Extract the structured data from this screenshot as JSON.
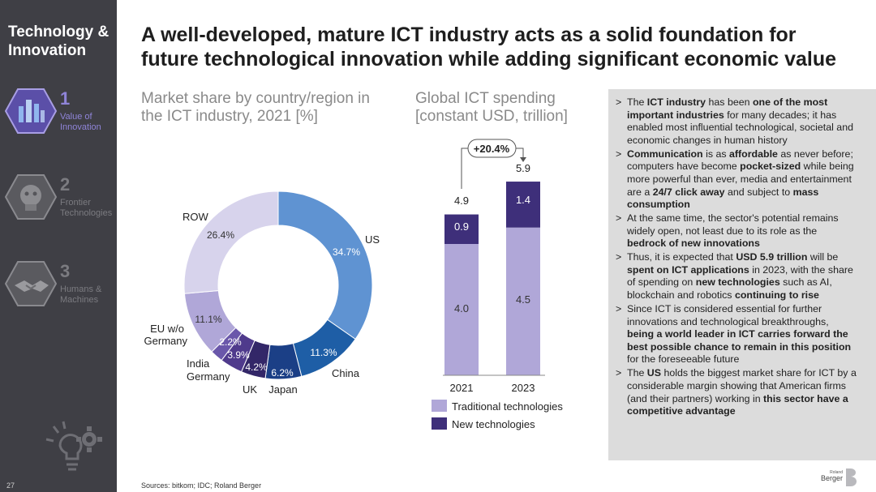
{
  "sidebar": {
    "title": "Technology & Innovation",
    "items": [
      {
        "number": "1",
        "label_line1": "Value of",
        "label_line2": "Innovation"
      },
      {
        "number": "2",
        "label_line1": "Frontier",
        "label_line2": "Technologies"
      },
      {
        "number": "3",
        "label_line1": "Humans &",
        "label_line2": "Machines"
      }
    ],
    "page_number": "27"
  },
  "headline": "A well-developed, mature ICT industry acts as a solid foundation for future technological innovation while adding significant economic value",
  "chart_titles": {
    "donut_line1": "Market share by country/region in",
    "donut_line2": "the ICT industry, 2021 [%]",
    "bars_line1": "Global ICT spending",
    "bars_line2": "[constant USD, trillion]"
  },
  "colors": {
    "us": "#5f93d2",
    "china": "#1e5ea6",
    "japan": "#1b3f86",
    "uk": "#332768",
    "germany": "#4f3a8c",
    "india": "#6a57aa",
    "eu": "#b0a7d8",
    "row": "#d7d3ec",
    "traditional": "#b0a7d8",
    "new": "#3e2f7a",
    "sidebar_bg": "#3f3f45",
    "panel_bg": "#dcdcdc"
  },
  "chart_data": [
    {
      "type": "pie",
      "categories": [
        "US",
        "China",
        "Japan",
        "UK",
        "Germany",
        "India",
        "EU w/o Germany",
        "ROW"
      ],
      "values": [
        34.7,
        11.3,
        6.2,
        4.2,
        3.9,
        2.2,
        11.1,
        26.4
      ],
      "value_labels": [
        "34.7%",
        "11.3%",
        "6.2%",
        "4.2%",
        "3.9%",
        "2.2%",
        "11.1%",
        "26.4%"
      ],
      "title": "Market share by country/region in the ICT industry, 2021 [%]"
    },
    {
      "type": "bar",
      "categories": [
        "2021",
        "2023"
      ],
      "series": [
        {
          "name": "Traditional technologies",
          "values": [
            4.0,
            4.5
          ],
          "labels": [
            "4.0",
            "4.5"
          ]
        },
        {
          "name": "New technologies",
          "values": [
            0.9,
            1.4
          ],
          "labels": [
            "0.9",
            "1.4"
          ]
        }
      ],
      "totals": [
        "4.9",
        "5.9"
      ],
      "growth_label": "+20.4%",
      "title": "Global ICT spending [constant USD, trillion]"
    }
  ],
  "panel": {
    "bullets": [
      [
        {
          "t": "The "
        },
        {
          "t": "ICT industry",
          "b": true
        },
        {
          "t": " has been "
        },
        {
          "t": "one of the most important industries",
          "b": true
        },
        {
          "t": " for many decades; it has enabled most influential technological, societal and economic changes in human history"
        }
      ],
      [
        {
          "t": "Communication",
          "b": true
        },
        {
          "t": " is as "
        },
        {
          "t": "affordable",
          "b": true
        },
        {
          "t": " as never before; computers have become "
        },
        {
          "t": "pocket-sized",
          "b": true
        },
        {
          "t": " while being more powerful than ever, media and entertainment are a "
        },
        {
          "t": "24/7 click away",
          "b": true
        },
        {
          "t": " and subject to "
        },
        {
          "t": "mass consumption",
          "b": true
        }
      ],
      [
        {
          "t": "At the same time, the sector's potential remains widely open, not least due to its role as the "
        },
        {
          "t": "bedrock of new innovations",
          "b": true
        }
      ],
      [
        {
          "t": "Thus, it is expected that "
        },
        {
          "t": "USD 5.9 trillion",
          "b": true
        },
        {
          "t": " will be "
        },
        {
          "t": "spent on ICT applications",
          "b": true
        },
        {
          "t": " in 2023, with the share of spending on "
        },
        {
          "t": "new technologies",
          "b": true
        },
        {
          "t": " such as AI, blockchain and robotics "
        },
        {
          "t": "continuing to rise",
          "b": true
        }
      ],
      [
        {
          "t": "Since ICT is considered essential for further innovations and technological breakthroughs, "
        },
        {
          "t": "being a world leader in ICT carries forward the best possible chance to remain in this position",
          "b": true
        },
        {
          "t": " for the foreseeable future"
        }
      ],
      [
        {
          "t": "The "
        },
        {
          "t": "US",
          "b": true
        },
        {
          "t": " holds the biggest market share for ICT by a considerable margin showing that American firms (and their partners) working in "
        },
        {
          "t": "this sector have a competitive advantage",
          "b": true
        }
      ]
    ]
  },
  "sources": "Sources: bitkom; IDC; Roland Berger",
  "logo": {
    "small": "Roland",
    "large": "Berger"
  }
}
